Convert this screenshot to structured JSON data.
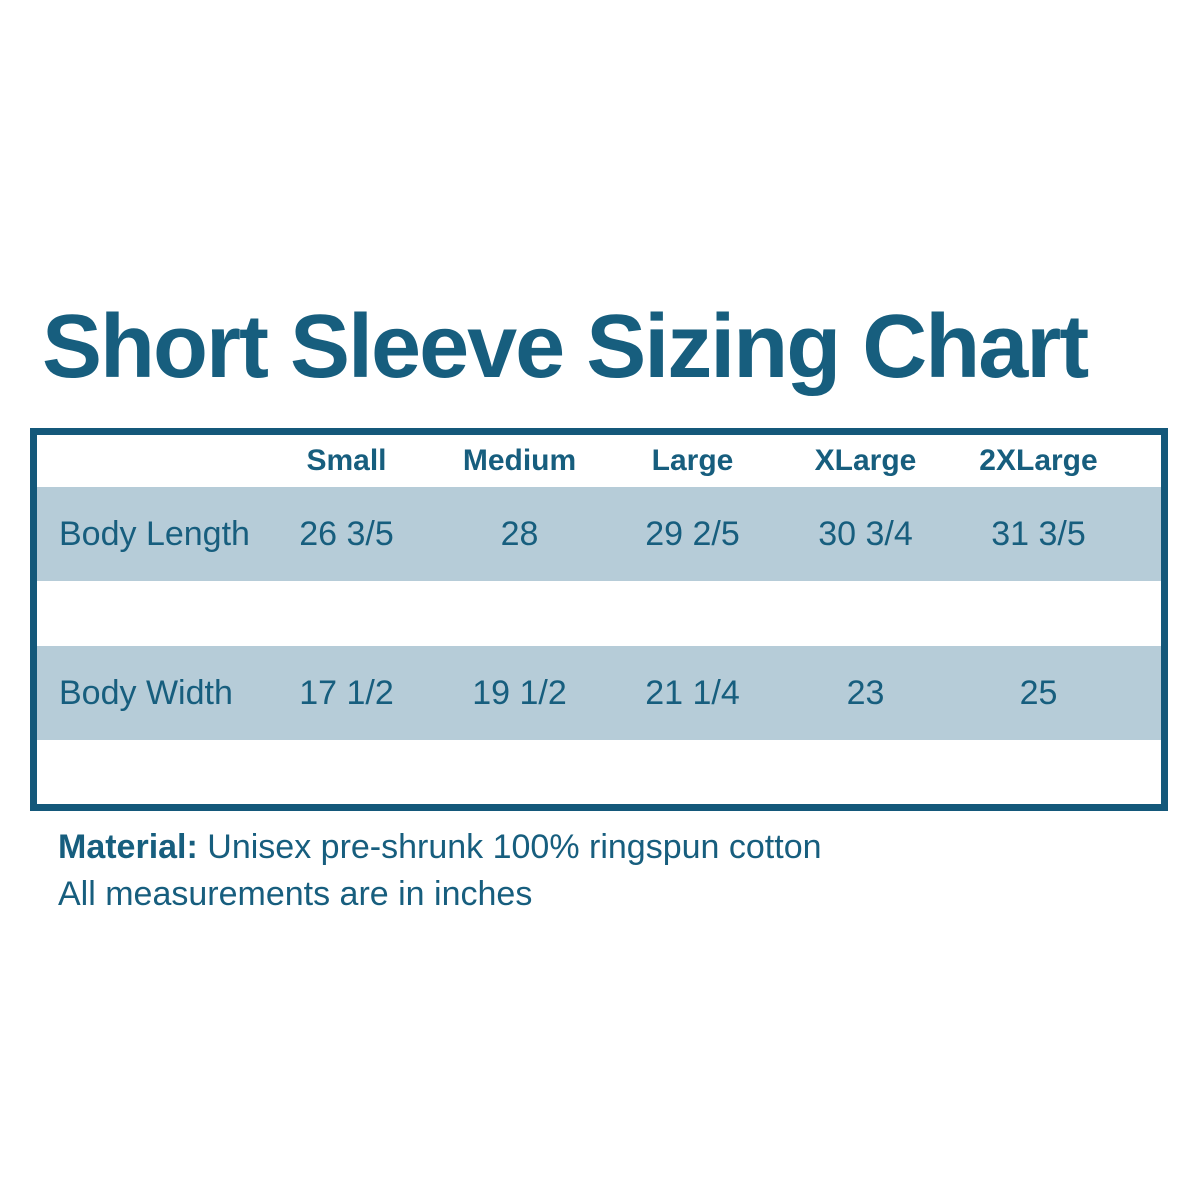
{
  "chart_data": {
    "type": "table",
    "title": "Short Sleeve Sizing Chart",
    "columns": [
      "Small",
      "Medium",
      "Large",
      "XLarge",
      "2XLarge"
    ],
    "rows": [
      {
        "label": "Body Length",
        "values": [
          "26 3/5",
          "28",
          "29 2/5",
          "30 3/4",
          "31 3/5"
        ]
      },
      {
        "label": "Body Width",
        "values": [
          "17 1/2",
          "19 1/2",
          "21 1/4",
          "23",
          "25"
        ]
      }
    ],
    "material_label": "Material:",
    "material_text": "Unisex pre-shrunk 100% ringspun cotton",
    "note": "All measurements are in inches"
  },
  "colors": {
    "text": "#175E7E",
    "border": "#14587A",
    "row_bg": "#B6CCD8",
    "background": "#FFFFFF"
  }
}
